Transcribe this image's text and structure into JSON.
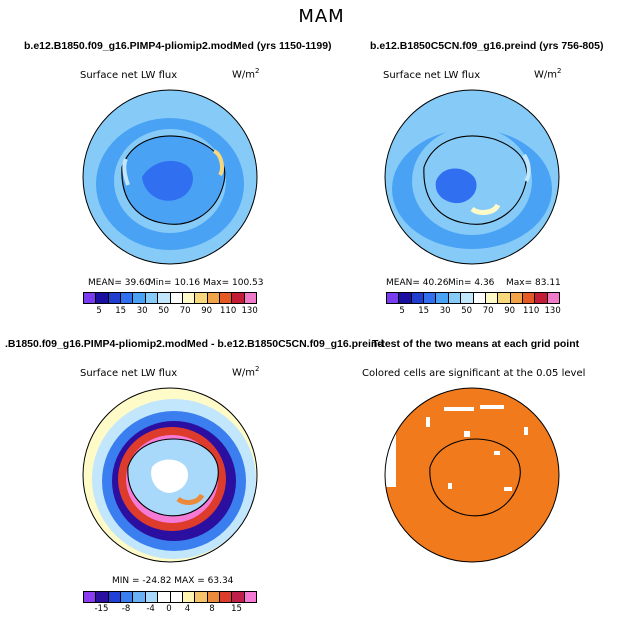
{
  "title": "MAM",
  "panels": [
    {
      "title": "b.e12.B1850.f09_g16.PIMP4-pliomip2.modMed (yrs 1150-1199)",
      "variable": "Surface net LW flux",
      "units": "W/m",
      "units_sup": "2",
      "stats": {
        "mean": "MEAN=  39.60",
        "min": "Min=   10.16",
        "max": "Max= 100.53"
      }
    },
    {
      "title": "b.e12.B1850C5CN.f09_g16.preind (yrs 756-805)",
      "variable": "Surface net LW flux",
      "units": "W/m",
      "units_sup": "2",
      "stats": {
        "mean": "MEAN=  40.26",
        "min": "Min=    4.36",
        "max": "Max=  83.11"
      }
    },
    {
      "title": ".B1850.f09_g16.PIMP4-pliomip2.modMed - b.e12.B1850C5CN.f09_g16.preind",
      "variable": "Surface net LW flux",
      "units": "W/m",
      "units_sup": "2",
      "stats": {
        "minmax": "MIN = -24.82  MAX =  63.34"
      }
    },
    {
      "title": "T-test of the two means at each grid point",
      "subtitle": "Colored cells are significant at the 0.05 level"
    }
  ],
  "colorbar_abs": {
    "colors": [
      "#7a3cf0",
      "#1a0fa0",
      "#1f3ecf",
      "#2f6ff0",
      "#4aa2f5",
      "#86cbf7",
      "#c2e6fb",
      "#ffffff",
      "#fffbc9",
      "#f7d87d",
      "#f0a348",
      "#e55a24",
      "#c31d36",
      "#f07ac8"
    ],
    "tick_labels": [
      "5",
      "15",
      "30",
      "50",
      "70",
      "90",
      "110",
      "130"
    ]
  },
  "colorbar_diff": {
    "colors": [
      "#8a3cf0",
      "#2a0fa0",
      "#2040d8",
      "#3b7ef0",
      "#6ab0f5",
      "#a8d8fa",
      "#ffffff",
      "#ffffff",
      "#fff5b0",
      "#f5c46a",
      "#ec8a3b",
      "#dd3b2c",
      "#c01f4b",
      "#f57ad6"
    ],
    "tick_labels": [
      "-15",
      "-8",
      "-4",
      "0",
      "4",
      "8",
      "15"
    ]
  },
  "ttest_color": "#f07a1c",
  "chart_data": [
    {
      "type": "heatmap",
      "title": "b.e12.B1850.f09_g16.PIMP4-pliomip2.modMed (yrs 1150-1199)",
      "variable": "Surface net LW flux",
      "units": "W/m2",
      "mean": 39.6,
      "min": 10.16,
      "max": 100.53,
      "levels": [
        5,
        15,
        30,
        50,
        70,
        90,
        110,
        130
      ]
    },
    {
      "type": "heatmap",
      "title": "b.e12.B1850C5CN.f09_g16.preind (yrs 756-805)",
      "variable": "Surface net LW flux",
      "units": "W/m2",
      "mean": 40.26,
      "min": 4.36,
      "max": 83.11,
      "levels": [
        5,
        15,
        30,
        50,
        70,
        90,
        110,
        130
      ]
    },
    {
      "type": "heatmap",
      "title": ".B1850.f09_g16.PIMP4-pliomip2.modMed - b.e12.B1850C5CN.f09_g16.preind",
      "variable": "Surface net LW flux",
      "units": "W/m2",
      "min": -24.82,
      "max": 63.34,
      "levels": [
        -15,
        -8,
        -4,
        0,
        4,
        8,
        15
      ]
    },
    {
      "type": "heatmap",
      "title": "T-test of the two means at each grid point",
      "subtitle": "Colored cells are significant at the 0.05 level"
    }
  ]
}
